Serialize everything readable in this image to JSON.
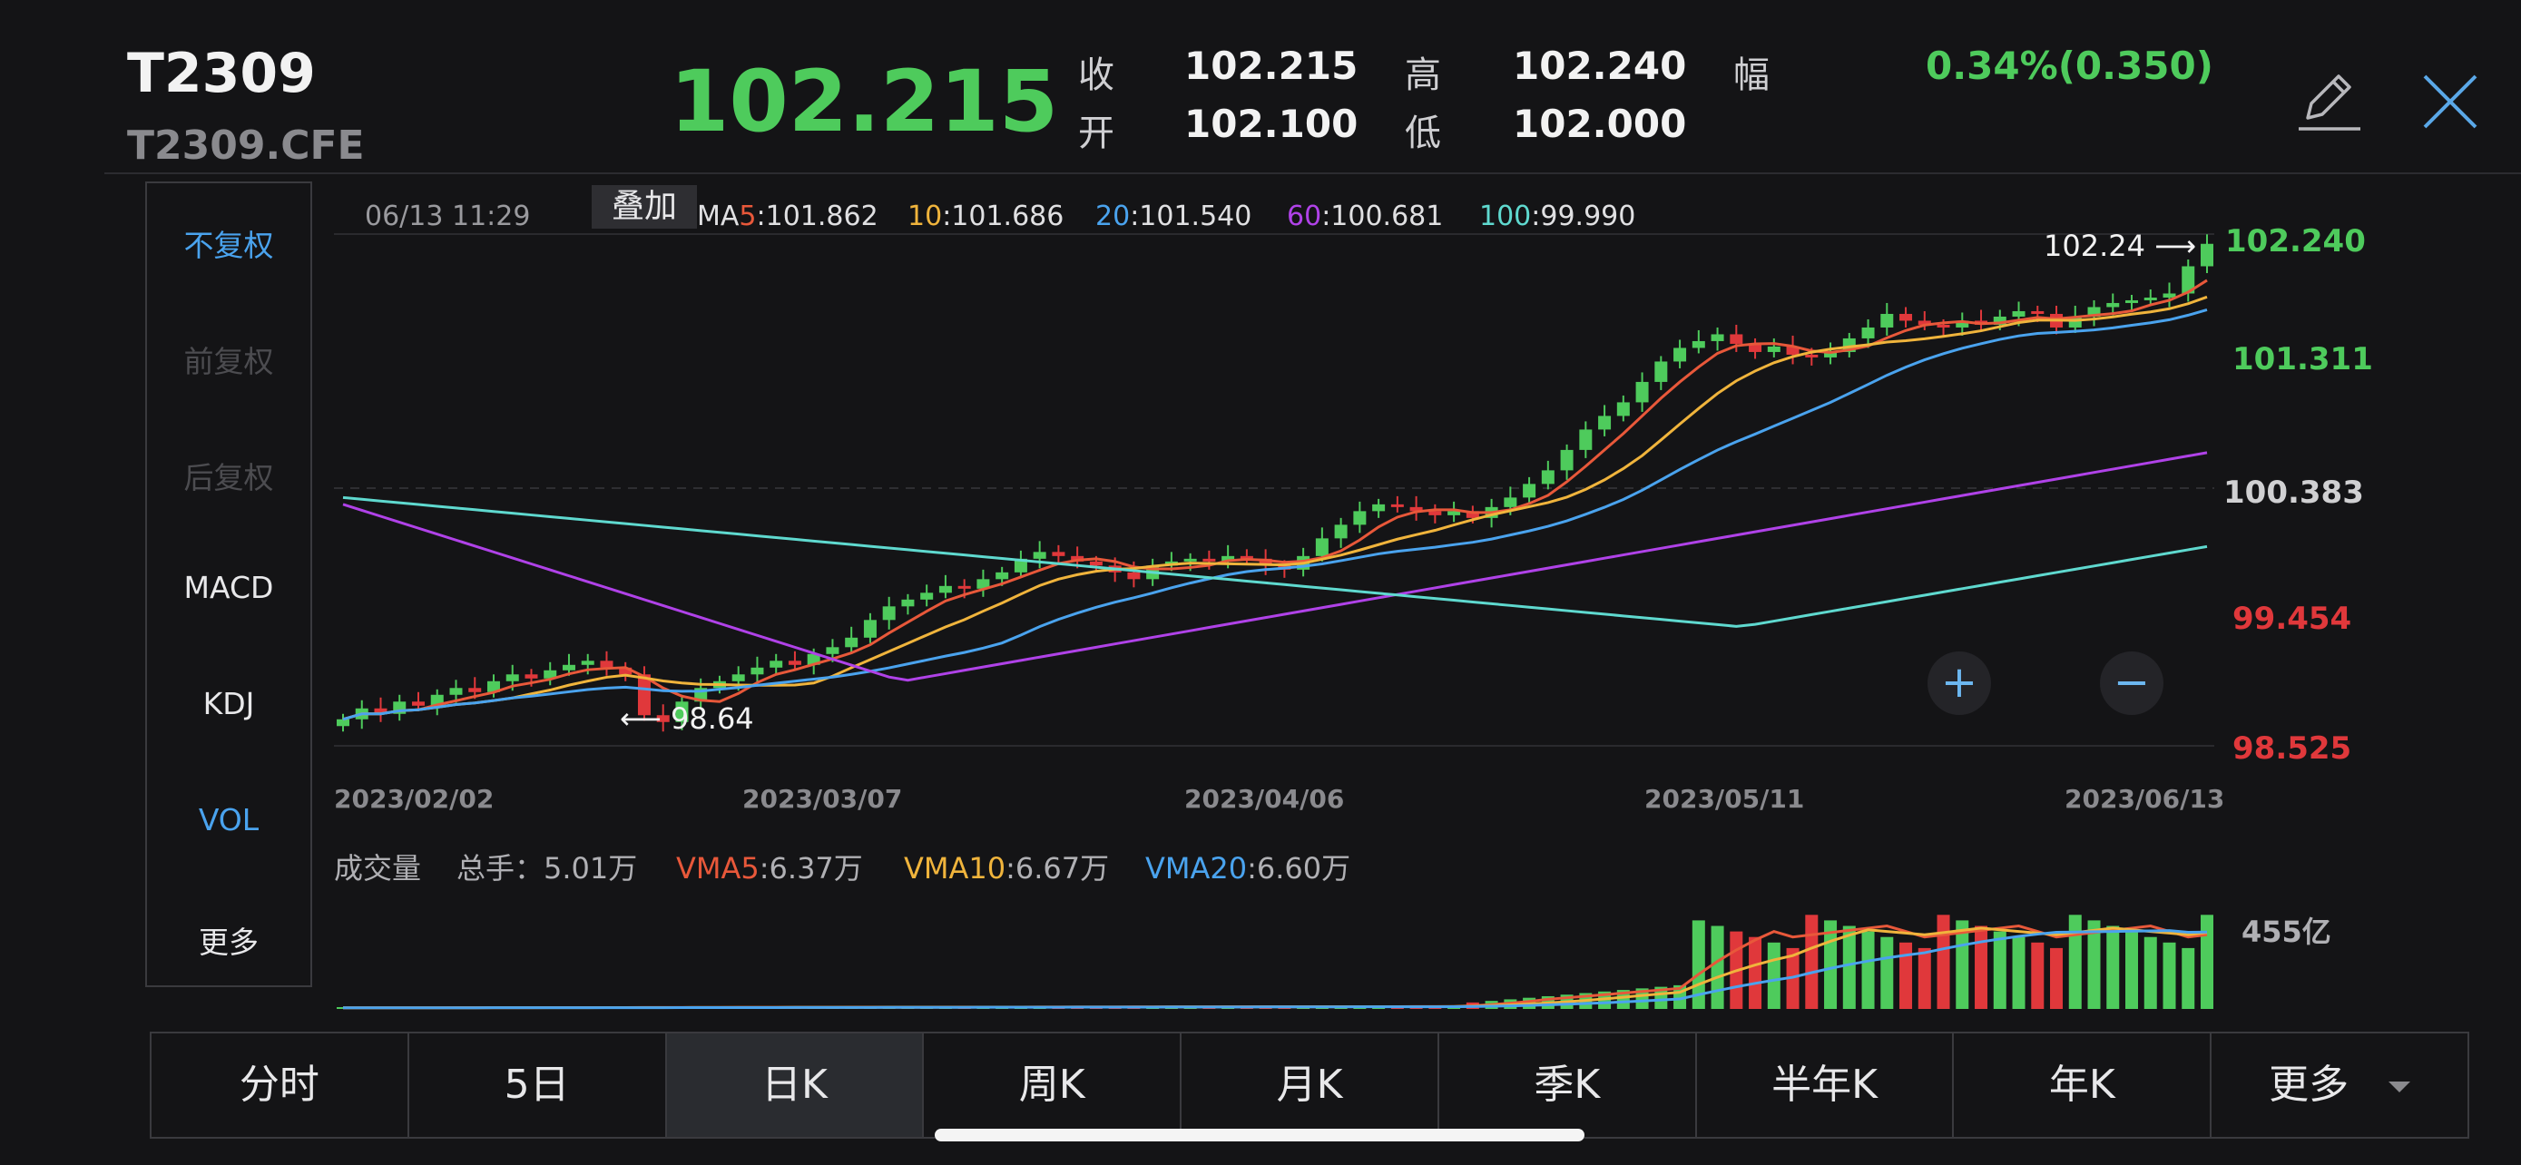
{
  "header": {
    "symbol": "T2309",
    "code": "T2309.CFE",
    "price": "102.215",
    "close_label": "收",
    "close_value": "102.215",
    "open_label": "开",
    "open_value": "102.100",
    "high_label": "高",
    "high_value": "102.240",
    "low_label": "低",
    "low_value": "102.000",
    "change_label": "幅",
    "change_value": "0.34%(0.350)"
  },
  "left_panel": {
    "items": [
      "不复权",
      "前复权",
      "后复权",
      "MACD",
      "KDJ",
      "VOL",
      "更多"
    ]
  },
  "chart_header": {
    "datetime": "06/13 11:29",
    "overlay_label": "叠加",
    "ma": [
      {
        "key": "MA",
        "num": "5",
        "value": ":101.862",
        "color": "#e8583a"
      },
      {
        "key": "",
        "num": "10",
        "value": ":101.686",
        "color": "#f0b43c"
      },
      {
        "key": "",
        "num": "20",
        "value": ":101.540",
        "color": "#4aa3ee"
      },
      {
        "key": "",
        "num": "60",
        "value": ":100.681",
        "color": "#b042e8"
      },
      {
        "key": "",
        "num": "100",
        "value": ":99.990",
        "color": "#5fd9cf"
      }
    ]
  },
  "price_axis": {
    "labels": [
      "102.240",
      "101.311",
      "100.383",
      "99.454",
      "98.525"
    ],
    "colors": [
      "#4ecb5c",
      "#4ecb5c",
      "#d0d0d2",
      "#e0383b",
      "#e0383b"
    ]
  },
  "date_axis": [
    "2023/02/02",
    "2023/03/07",
    "2023/04/06",
    "2023/05/11",
    "2023/06/13"
  ],
  "annotations": {
    "high": "102.24 ⟶",
    "low": "⟵ 98.64"
  },
  "zoom": {
    "plus": "+",
    "minus": "−"
  },
  "volume": {
    "label": "成交量",
    "total": "总手：5.01万",
    "vma5_key": "VMA5",
    "vma5_val": ":6.37万",
    "vma10_key": "VMA10",
    "vma10_val": ":6.67万",
    "vma20_key": "VMA20",
    "vma20_val": ":6.60万",
    "axis_label": "455亿"
  },
  "tabs": [
    "分时",
    "5日",
    "日K",
    "周K",
    "月K",
    "季K",
    "半年K",
    "年K",
    "更多"
  ],
  "colors": {
    "up": "#4ecb5c",
    "down": "#e0383b",
    "accent": "#4aa3ee"
  },
  "chart_data": {
    "type": "candlestick",
    "x_range": [
      "2023/02/02",
      "2023/06/13"
    ],
    "ylim": [
      98.525,
      102.24
    ],
    "price_ticks": [
      102.24,
      101.311,
      100.383,
      99.454,
      98.525
    ],
    "closes": [
      98.72,
      98.8,
      98.76,
      98.85,
      98.82,
      98.9,
      98.95,
      98.92,
      99.0,
      99.05,
      99.02,
      99.08,
      99.12,
      99.15,
      99.1,
      99.05,
      98.75,
      98.7,
      98.85,
      98.95,
      99.0,
      99.05,
      99.1,
      99.15,
      99.12,
      99.2,
      99.25,
      99.32,
      99.45,
      99.55,
      99.6,
      99.65,
      99.7,
      99.68,
      99.75,
      99.8,
      99.9,
      99.95,
      99.92,
      99.88,
      99.85,
      99.8,
      99.75,
      99.85,
      99.88,
      99.9,
      99.88,
      99.92,
      99.9,
      99.85,
      99.82,
      99.92,
      100.05,
      100.15,
      100.25,
      100.3,
      100.28,
      100.25,
      100.22,
      100.25,
      100.2,
      100.28,
      100.35,
      100.45,
      100.55,
      100.7,
      100.85,
      100.95,
      101.05,
      101.2,
      101.35,
      101.45,
      101.5,
      101.55,
      101.48,
      101.42,
      101.46,
      101.4,
      101.38,
      101.42,
      101.52,
      101.6,
      101.7,
      101.65,
      101.62,
      101.6,
      101.65,
      101.62,
      101.68,
      101.72,
      101.7,
      101.6,
      101.68,
      101.75,
      101.78,
      101.8,
      101.82,
      101.85,
      102.05,
      102.215
    ],
    "high": 102.24,
    "low": 98.64,
    "ma_lines": {
      "MA5": 101.862,
      "MA10": 101.686,
      "MA20": 101.54,
      "MA60": 100.681,
      "MA100": 99.99
    },
    "volume_wan": {
      "total": 5.01,
      "VMA5": 6.37,
      "VMA10": 6.67,
      "VMA20": 6.6
    },
    "volume_axis_max": "455亿"
  }
}
